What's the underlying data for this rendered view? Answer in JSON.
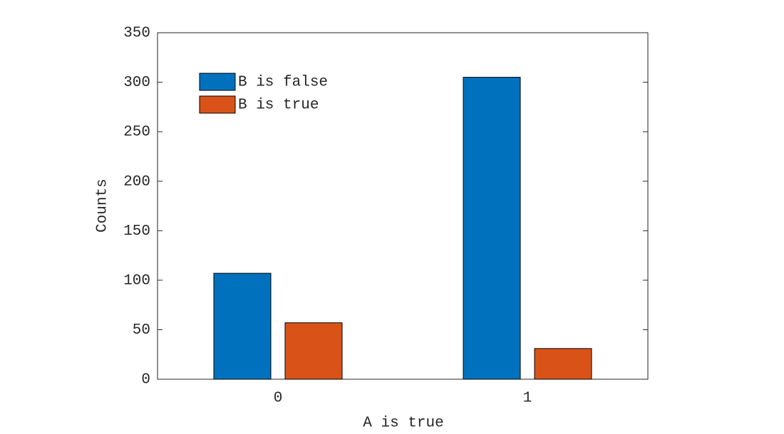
{
  "chart_data": {
    "type": "bar",
    "x_label": "A is true",
    "y_label": "Counts",
    "categories": [
      "0",
      "1"
    ],
    "series": [
      {
        "name": "B is false",
        "color": "#0072BD",
        "values": [
          107,
          305
        ]
      },
      {
        "name": "B is true",
        "color": "#D95319",
        "values": [
          57,
          31
        ]
      }
    ],
    "ylim": [
      0,
      350
    ],
    "yticks": [
      0,
      50,
      100,
      150,
      200,
      250,
      300,
      350
    ],
    "grid": false,
    "legend": "upper left"
  }
}
